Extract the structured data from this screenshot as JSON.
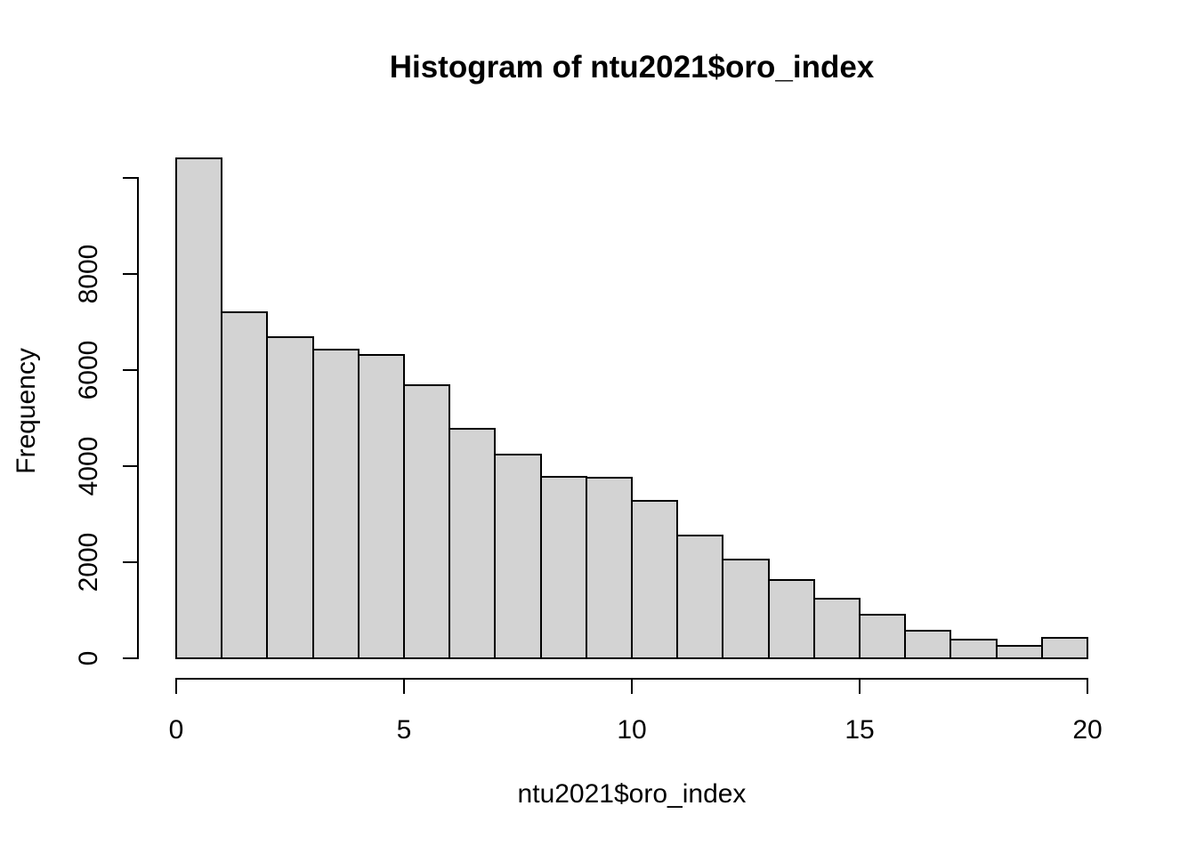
{
  "figure": {
    "title": "Histogram of ntu2021$oro_index",
    "xlabel": "ntu2021$oro_index",
    "ylabel": "Frequency"
  },
  "chart_data": {
    "type": "bar",
    "subtype": "histogram",
    "title": "Histogram of ntu2021$oro_index",
    "xlabel": "ntu2021$oro_index",
    "ylabel": "Frequency",
    "bin_start": 0,
    "bin_width": 1,
    "categories": [
      "0-1",
      "1-2",
      "2-3",
      "3-4",
      "4-5",
      "5-6",
      "6-7",
      "7-8",
      "8-9",
      "9-10",
      "10-11",
      "11-12",
      "12-13",
      "13-14",
      "14-15",
      "15-16",
      "16-17",
      "17-18",
      "18-19",
      "19-20"
    ],
    "values": [
      10400,
      7210,
      6680,
      6430,
      6320,
      5690,
      4780,
      4240,
      3770,
      3760,
      3280,
      2550,
      2060,
      1630,
      1240,
      910,
      570,
      390,
      260,
      430
    ],
    "xlim": [
      0,
      20
    ],
    "ylim": [
      0,
      10000
    ],
    "x_ticks": [
      0,
      5,
      10,
      15,
      20
    ],
    "x_tick_labels": [
      "0",
      "5",
      "10",
      "15",
      "20"
    ],
    "y_ticks": [
      0,
      2000,
      4000,
      6000,
      8000,
      10000
    ],
    "y_tick_labels": [
      "0",
      "2000",
      "4000",
      "6000",
      "8000",
      ""
    ],
    "grid": false,
    "legend": false,
    "background": "#ffffff",
    "bar_fill": "#d3d3d3",
    "bar_border": "#000000",
    "axis_color": "#000000"
  }
}
